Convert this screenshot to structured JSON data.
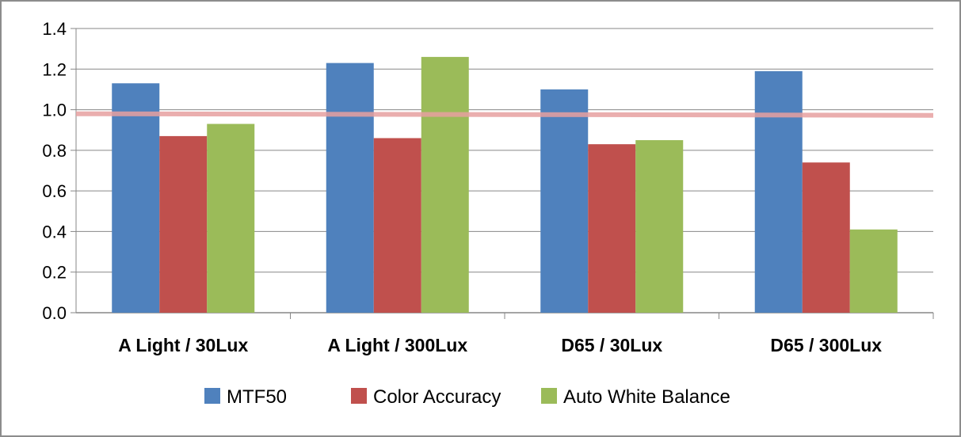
{
  "chart_data": {
    "type": "bar",
    "categories": [
      "A Light / 30Lux",
      "A Light / 300Lux",
      "D65 / 30Lux",
      "D65 / 300Lux"
    ],
    "series": [
      {
        "name": "MTF50",
        "color": "#4f81bd",
        "values": [
          1.13,
          1.23,
          1.1,
          1.19
        ]
      },
      {
        "name": "Color Accuracy",
        "color": "#c0504d",
        "values": [
          0.87,
          0.86,
          0.83,
          0.74
        ]
      },
      {
        "name": "Auto White Balance",
        "color": "#9bbb59",
        "values": [
          0.93,
          1.26,
          0.85,
          0.41
        ]
      }
    ],
    "y_ticks": [
      "0.0",
      "0.2",
      "0.4",
      "0.6",
      "0.8",
      "1.0",
      "1.2",
      "1.4"
    ],
    "ylim": [
      0,
      1.4
    ],
    "reference_line": {
      "value": 0.98,
      "color": "#e6a0a0"
    },
    "grid": true,
    "legend_position": "bottom"
  }
}
